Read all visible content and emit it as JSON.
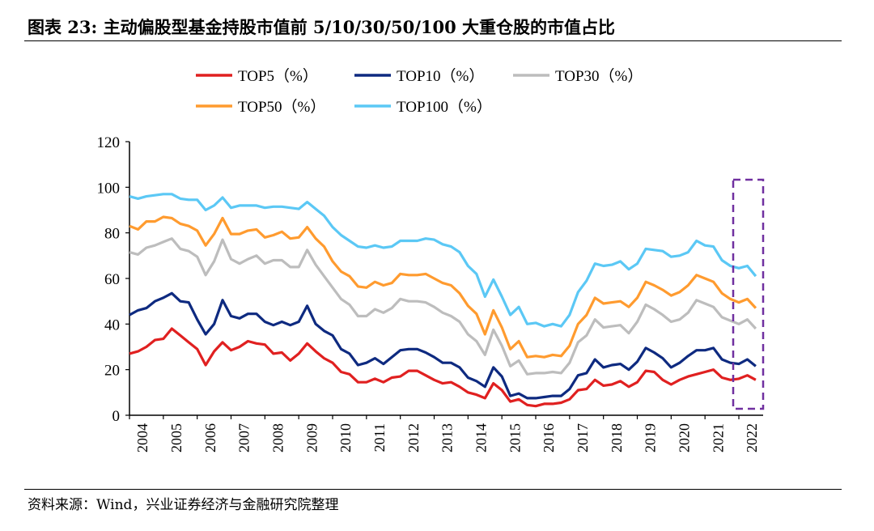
{
  "title": "图表 23:  主动偏股型基金持股市值前 5/10/30/50/100 大重仓股的市值占比",
  "source": "资料来源：Wind，兴业证券经济与金融研究院整理",
  "chart_data": {
    "type": "line",
    "title": "",
    "xlabel": "",
    "ylabel": "",
    "x_ticks": [
      "2004",
      "2005",
      "2006",
      "2007",
      "2008",
      "2009",
      "2010",
      "2011",
      "2012",
      "2013",
      "2014",
      "2015",
      "2016",
      "2017",
      "2018",
      "2019",
      "2020",
      "2021",
      "2022"
    ],
    "x_frequency": "quarterly, 2004Q1–2022Q3",
    "ylim": [
      0,
      120
    ],
    "y_ticks": [
      0,
      20,
      40,
      60,
      80,
      100,
      120
    ],
    "grid": false,
    "legend_position": "top",
    "highlight": {
      "label": "",
      "x_range": [
        "2021Q4",
        "2022Q3"
      ],
      "style": "dashed box",
      "color": "#7030A0"
    },
    "series": [
      {
        "name": "TOP5（%）",
        "color": "#E02020",
        "values": [
          27,
          28,
          30,
          33,
          33.5,
          38,
          35,
          32,
          29,
          22,
          28,
          32,
          28.5,
          30,
          32.5,
          31.5,
          31,
          27,
          27.5,
          24,
          27,
          31.5,
          28,
          25,
          23,
          19,
          18,
          14.5,
          14.5,
          16,
          14.5,
          16.5,
          17,
          19.5,
          19.5,
          17.5,
          15.5,
          14,
          14.5,
          12.5,
          10,
          9,
          7.5,
          14,
          11,
          6,
          7,
          4.5,
          4,
          5,
          5,
          5.5,
          7,
          11,
          11.5,
          15.5,
          13,
          13.5,
          15,
          12.5,
          14.5,
          19.5,
          19,
          15.5,
          13.5,
          15.5,
          17,
          18,
          19,
          20,
          16.5,
          15.5,
          16,
          17.5,
          15.5
        ]
      },
      {
        "name": "TOP10（%）",
        "color": "#0E2A80",
        "values": [
          44,
          46,
          47,
          50,
          51.5,
          53.5,
          50,
          49.5,
          42,
          35.5,
          40,
          50.5,
          43.5,
          42.5,
          44.5,
          44.5,
          41,
          39.5,
          41,
          39.5,
          41,
          48,
          40,
          37,
          35,
          29,
          27,
          22,
          23,
          25,
          22.5,
          25.5,
          28.5,
          29,
          29,
          27.5,
          25.5,
          23,
          23,
          21,
          16.5,
          15,
          12.5,
          21,
          17,
          8.5,
          9.5,
          7.5,
          7.5,
          8,
          8.5,
          8.5,
          11.5,
          17.5,
          18.5,
          24.5,
          21,
          22,
          22.5,
          20,
          23.5,
          29.5,
          27.5,
          25,
          21,
          23,
          26,
          28.5,
          28.5,
          29.5,
          24.5,
          23,
          22.5,
          24.5,
          21.5
        ]
      },
      {
        "name": "TOP30（%）",
        "color": "#BDBDBD",
        "values": [
          71.5,
          70.5,
          73.5,
          74.5,
          76,
          77.5,
          73,
          72,
          69.5,
          61.5,
          67.5,
          77,
          68.5,
          66.5,
          68.5,
          70,
          66.5,
          68,
          68,
          65,
          65,
          72.5,
          66,
          61,
          56,
          51,
          48.5,
          43.5,
          43.5,
          46.5,
          45,
          47,
          51,
          50,
          50,
          49.5,
          47.5,
          45,
          43.5,
          41,
          35.5,
          32.5,
          26.5,
          37.5,
          30.5,
          21.5,
          24,
          18,
          18.5,
          18.5,
          19,
          18.5,
          23,
          32,
          35,
          42,
          38.5,
          39,
          39.5,
          36,
          41,
          48.5,
          46.5,
          44,
          41,
          42,
          45,
          50.5,
          49,
          47.5,
          43,
          41.5,
          40,
          42,
          38
        ]
      },
      {
        "name": "TOP50（%）",
        "color": "#FF9B2F",
        "values": [
          83,
          81.5,
          85,
          85,
          87,
          86.5,
          84,
          83,
          81,
          74.5,
          79.5,
          86.5,
          79.5,
          79.5,
          81,
          81.5,
          78,
          79,
          80.5,
          77.5,
          78,
          82.5,
          77.5,
          74,
          67.5,
          63,
          61,
          56.5,
          56,
          58.5,
          57,
          58,
          62,
          61.5,
          61.5,
          62,
          60,
          58,
          57,
          53.5,
          48,
          44.5,
          35.5,
          46,
          38.5,
          29,
          32.5,
          25.5,
          26,
          25.5,
          26.5,
          26,
          30.5,
          40,
          44,
          51.5,
          49,
          49.5,
          50,
          47.5,
          51.5,
          58.5,
          57,
          55,
          52.5,
          54,
          57,
          61.5,
          60,
          58.5,
          53.5,
          51,
          49.5,
          51,
          47
        ]
      },
      {
        "name": "TOP100（%）",
        "color": "#5BC8F5",
        "values": [
          96,
          95,
          96,
          96.5,
          97,
          97,
          95,
          94.5,
          94.5,
          90,
          92,
          95.5,
          91,
          92,
          92,
          92,
          91,
          91.5,
          91.5,
          91,
          90.5,
          93.5,
          90.5,
          87.5,
          82.5,
          79,
          76.5,
          74,
          73.5,
          74.5,
          73.5,
          74,
          76.5,
          76.5,
          76.5,
          77.5,
          77,
          75,
          74,
          71.5,
          65.5,
          62,
          52,
          59.5,
          52,
          44,
          47.5,
          40,
          40.5,
          39,
          40,
          39,
          44,
          54,
          59,
          66.5,
          65.5,
          66,
          67.5,
          64,
          66.5,
          73,
          72.5,
          72,
          69.5,
          70,
          71.5,
          76.5,
          74.5,
          74,
          68,
          65.5,
          64.5,
          65.5,
          61
        ]
      }
    ]
  }
}
